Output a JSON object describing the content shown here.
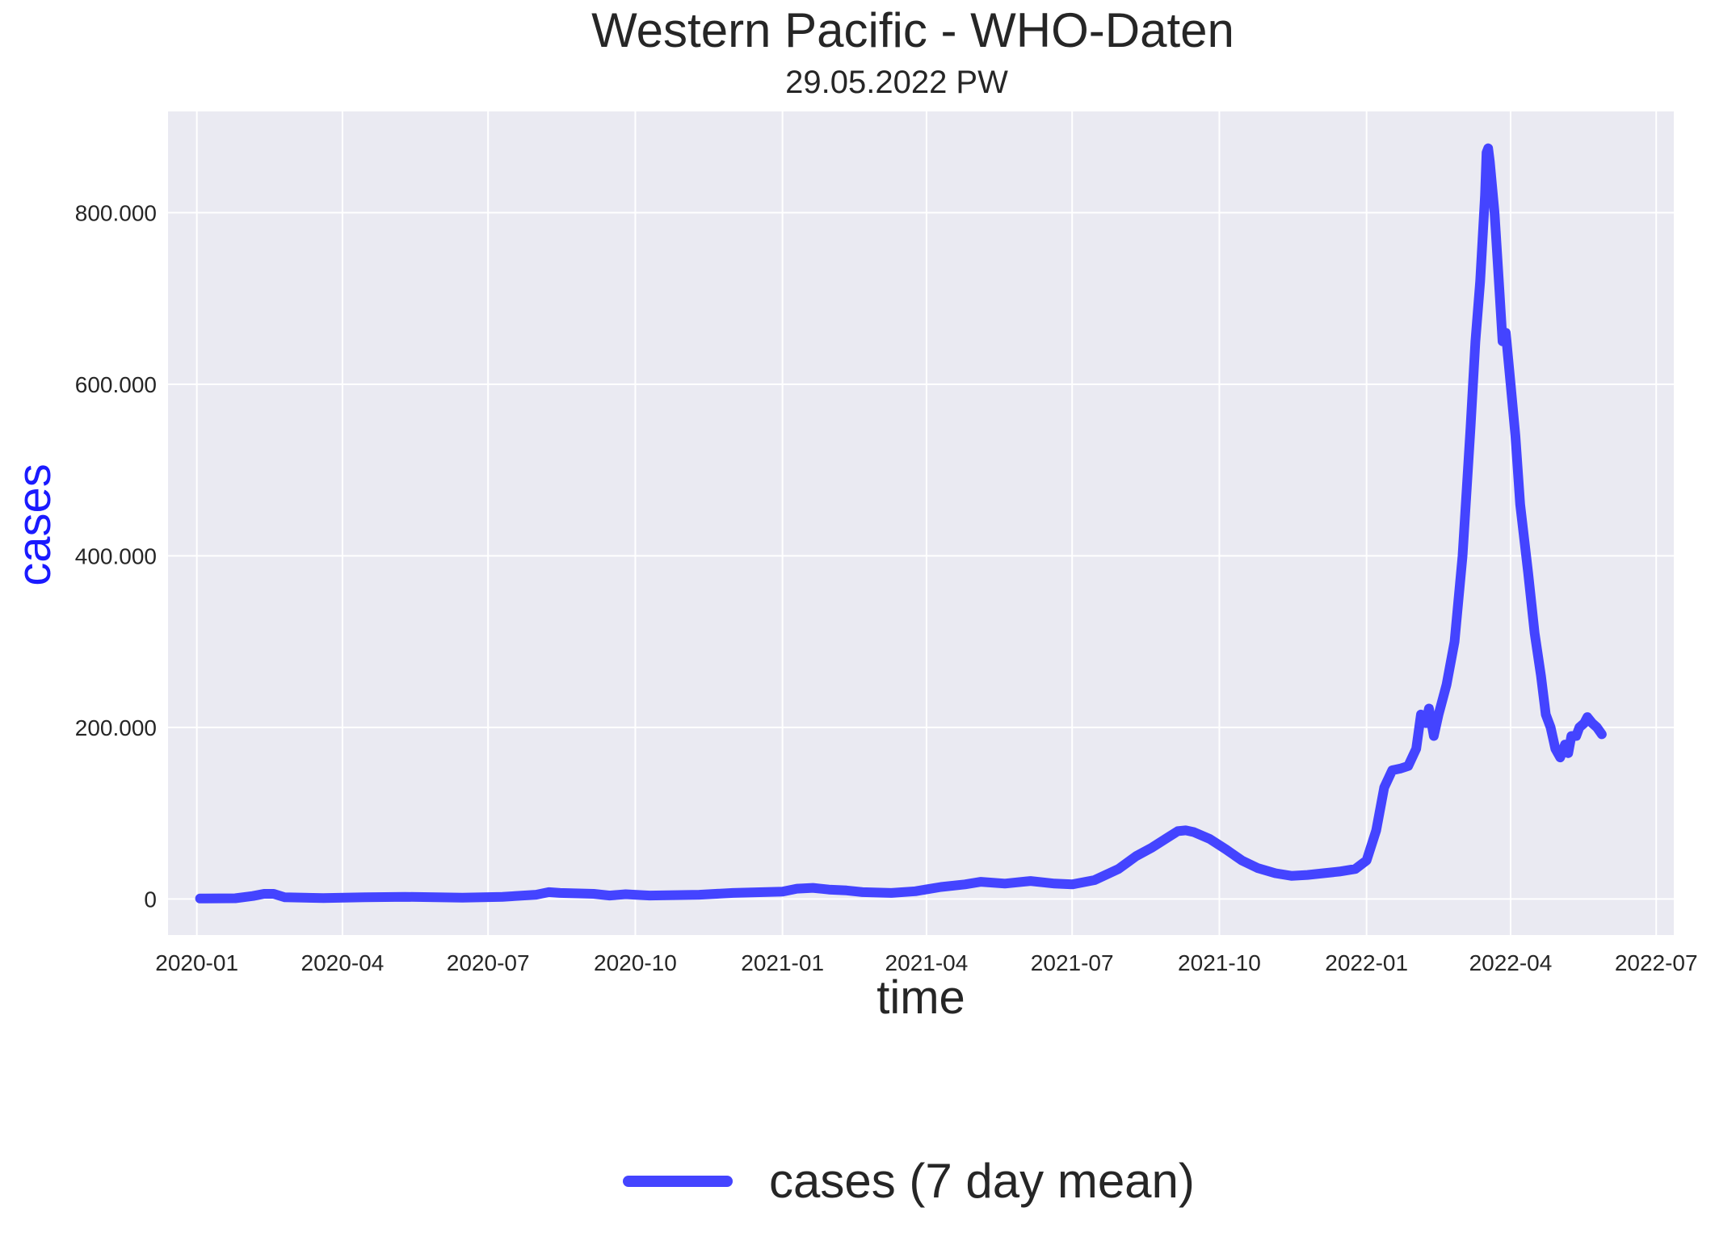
{
  "chart_data": {
    "type": "line",
    "title": "Western Pacific - WHO-Daten",
    "subtitle": "29.05.2022 PW",
    "xlabel": "time",
    "ylabel": "cases",
    "ylim": [
      -42000,
      918000
    ],
    "xlim": [
      "2019-12-14",
      "2022-07-12"
    ],
    "grid": true,
    "legend_position": "bottom-center",
    "x_ticks": [
      "2020-01-01",
      "2020-04-01",
      "2020-07-01",
      "2020-10-01",
      "2021-01-01",
      "2021-04-01",
      "2021-07-01",
      "2021-10-01",
      "2022-01-01",
      "2022-04-01",
      "2022-07-01"
    ],
    "x_tick_labels": [
      "2020-01",
      "2020-04",
      "2020-07",
      "2020-10",
      "2021-01",
      "2021-04",
      "2021-07",
      "2021-10",
      "2022-01",
      "2022-04",
      "2022-07"
    ],
    "y_ticks": [
      0,
      200000,
      400000,
      600000,
      800000
    ],
    "y_tick_labels": [
      "0",
      "200.000",
      "400.000",
      "600.000",
      "800.000"
    ],
    "colors": {
      "line": "#4444ff",
      "ylabel": "#1a1aff",
      "plot_bg": "#eaeaf2",
      "grid": "#ffffff"
    },
    "series": [
      {
        "name": "cases (7 day mean)",
        "points": [
          [
            "2020-01-03",
            500
          ],
          [
            "2020-01-25",
            800
          ],
          [
            "2020-02-05",
            3500
          ],
          [
            "2020-02-12",
            6000
          ],
          [
            "2020-02-18",
            6000
          ],
          [
            "2020-02-25",
            2000
          ],
          [
            "2020-03-20",
            1000
          ],
          [
            "2020-04-15",
            2000
          ],
          [
            "2020-05-10",
            2500
          ],
          [
            "2020-06-15",
            1500
          ],
          [
            "2020-07-10",
            2500
          ],
          [
            "2020-07-31",
            5000
          ],
          [
            "2020-08-08",
            8000
          ],
          [
            "2020-08-15",
            7000
          ],
          [
            "2020-09-05",
            6000
          ],
          [
            "2020-09-15",
            4000
          ],
          [
            "2020-09-25",
            5500
          ],
          [
            "2020-10-10",
            4000
          ],
          [
            "2020-11-10",
            5000
          ],
          [
            "2020-12-01",
            7000
          ],
          [
            "2021-01-01",
            8500
          ],
          [
            "2021-01-10",
            12000
          ],
          [
            "2021-01-20",
            13000
          ],
          [
            "2021-01-30",
            11000
          ],
          [
            "2021-02-10",
            10000
          ],
          [
            "2021-02-20",
            8000
          ],
          [
            "2021-03-10",
            7000
          ],
          [
            "2021-03-25",
            9000
          ],
          [
            "2021-04-10",
            14000
          ],
          [
            "2021-04-25",
            17000
          ],
          [
            "2021-05-05",
            20000
          ],
          [
            "2021-05-20",
            18000
          ],
          [
            "2021-06-05",
            21000
          ],
          [
            "2021-06-20",
            18000
          ],
          [
            "2021-07-01",
            17000
          ],
          [
            "2021-07-15",
            22000
          ],
          [
            "2021-07-30",
            35000
          ],
          [
            "2021-08-10",
            50000
          ],
          [
            "2021-08-20",
            60000
          ],
          [
            "2021-08-30",
            72000
          ],
          [
            "2021-09-05",
            79000
          ],
          [
            "2021-09-10",
            80000
          ],
          [
            "2021-09-15",
            78000
          ],
          [
            "2021-09-25",
            70000
          ],
          [
            "2021-10-05",
            58000
          ],
          [
            "2021-10-15",
            45000
          ],
          [
            "2021-10-25",
            36000
          ],
          [
            "2021-11-05",
            30000
          ],
          [
            "2021-11-15",
            27000
          ],
          [
            "2021-11-25",
            28000
          ],
          [
            "2021-12-05",
            30000
          ],
          [
            "2021-12-15",
            32000
          ],
          [
            "2021-12-25",
            35000
          ],
          [
            "2022-01-01",
            45000
          ],
          [
            "2022-01-07",
            80000
          ],
          [
            "2022-01-12",
            130000
          ],
          [
            "2022-01-17",
            150000
          ],
          [
            "2022-01-22",
            152000
          ],
          [
            "2022-01-27",
            155000
          ],
          [
            "2022-02-01",
            175000
          ],
          [
            "2022-02-04",
            215000
          ],
          [
            "2022-02-07",
            205000
          ],
          [
            "2022-02-09",
            222000
          ],
          [
            "2022-02-12",
            190000
          ],
          [
            "2022-02-15",
            215000
          ],
          [
            "2022-02-20",
            250000
          ],
          [
            "2022-02-25",
            300000
          ],
          [
            "2022-03-02",
            400000
          ],
          [
            "2022-03-07",
            550000
          ],
          [
            "2022-03-10",
            650000
          ],
          [
            "2022-03-13",
            720000
          ],
          [
            "2022-03-16",
            820000
          ],
          [
            "2022-03-17",
            870000
          ],
          [
            "2022-03-18",
            875000
          ],
          [
            "2022-03-19",
            860000
          ],
          [
            "2022-03-22",
            800000
          ],
          [
            "2022-03-25",
            710000
          ],
          [
            "2022-03-27",
            650000
          ],
          [
            "2022-03-29",
            660000
          ],
          [
            "2022-04-01",
            600000
          ],
          [
            "2022-04-04",
            540000
          ],
          [
            "2022-04-07",
            460000
          ],
          [
            "2022-04-12",
            380000
          ],
          [
            "2022-04-16",
            310000
          ],
          [
            "2022-04-20",
            260000
          ],
          [
            "2022-04-23",
            215000
          ],
          [
            "2022-04-26",
            200000
          ],
          [
            "2022-04-29",
            175000
          ],
          [
            "2022-05-02",
            165000
          ],
          [
            "2022-05-05",
            180000
          ],
          [
            "2022-05-07",
            170000
          ],
          [
            "2022-05-09",
            190000
          ],
          [
            "2022-05-12",
            190000
          ],
          [
            "2022-05-14",
            200000
          ],
          [
            "2022-05-17",
            205000
          ],
          [
            "2022-05-19",
            212000
          ],
          [
            "2022-05-22",
            205000
          ],
          [
            "2022-05-25",
            200000
          ],
          [
            "2022-05-28",
            192000
          ]
        ]
      }
    ]
  }
}
